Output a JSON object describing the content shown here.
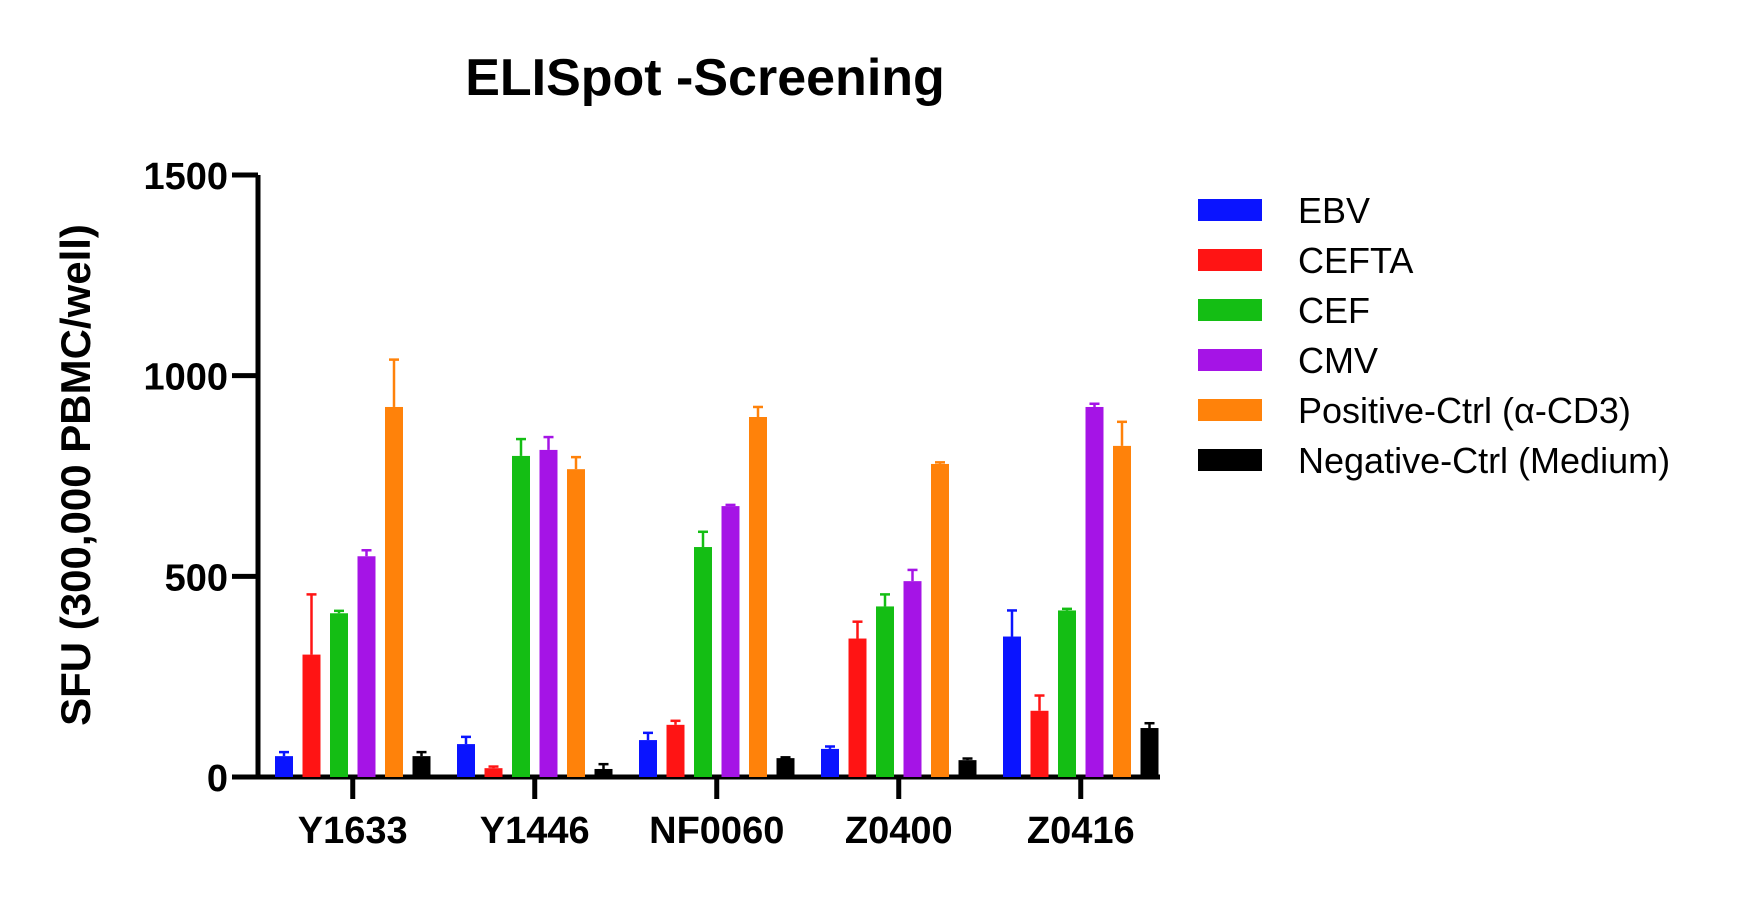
{
  "chart_data": {
    "type": "bar",
    "title": "ELISpot -Screening",
    "xlabel": "",
    "ylabel": "SFU (300,000 PBMC/well)",
    "ylim": [
      0,
      1500
    ],
    "yticks": [
      0,
      500,
      1000,
      1500
    ],
    "grid": false,
    "legend_position": "right",
    "categories": [
      "Y1633",
      "Y1446",
      "NF0060",
      "Z0400",
      "Z0416"
    ],
    "series": [
      {
        "name": "EBV",
        "color": "#0a14ff",
        "values": [
          52,
          82,
          92,
          70,
          350
        ],
        "errors": [
          10,
          18,
          18,
          6,
          65
        ]
      },
      {
        "name": "CEFTA",
        "color": "#ff1414",
        "values": [
          305,
          22,
          130,
          345,
          165
        ],
        "errors": [
          150,
          4,
          10,
          42,
          38
        ]
      },
      {
        "name": "CEF",
        "color": "#14be14",
        "values": [
          408,
          800,
          573,
          425,
          415
        ],
        "errors": [
          6,
          42,
          38,
          30,
          4
        ]
      },
      {
        "name": "CMV",
        "color": "#a514e6",
        "values": [
          550,
          815,
          675,
          488,
          922
        ],
        "errors": [
          15,
          32,
          3,
          28,
          8
        ]
      },
      {
        "name": "Positive-Ctrl (α-CD3)",
        "color": "#ff820a",
        "values": [
          922,
          767,
          897,
          780,
          825
        ],
        "errors": [
          118,
          30,
          25,
          4,
          60
        ]
      },
      {
        "name": "Negative-Ctrl (Medium)",
        "color": "#000000",
        "values": [
          52,
          20,
          47,
          42,
          122
        ],
        "errors": [
          10,
          12,
          2,
          4,
          12
        ]
      }
    ]
  }
}
